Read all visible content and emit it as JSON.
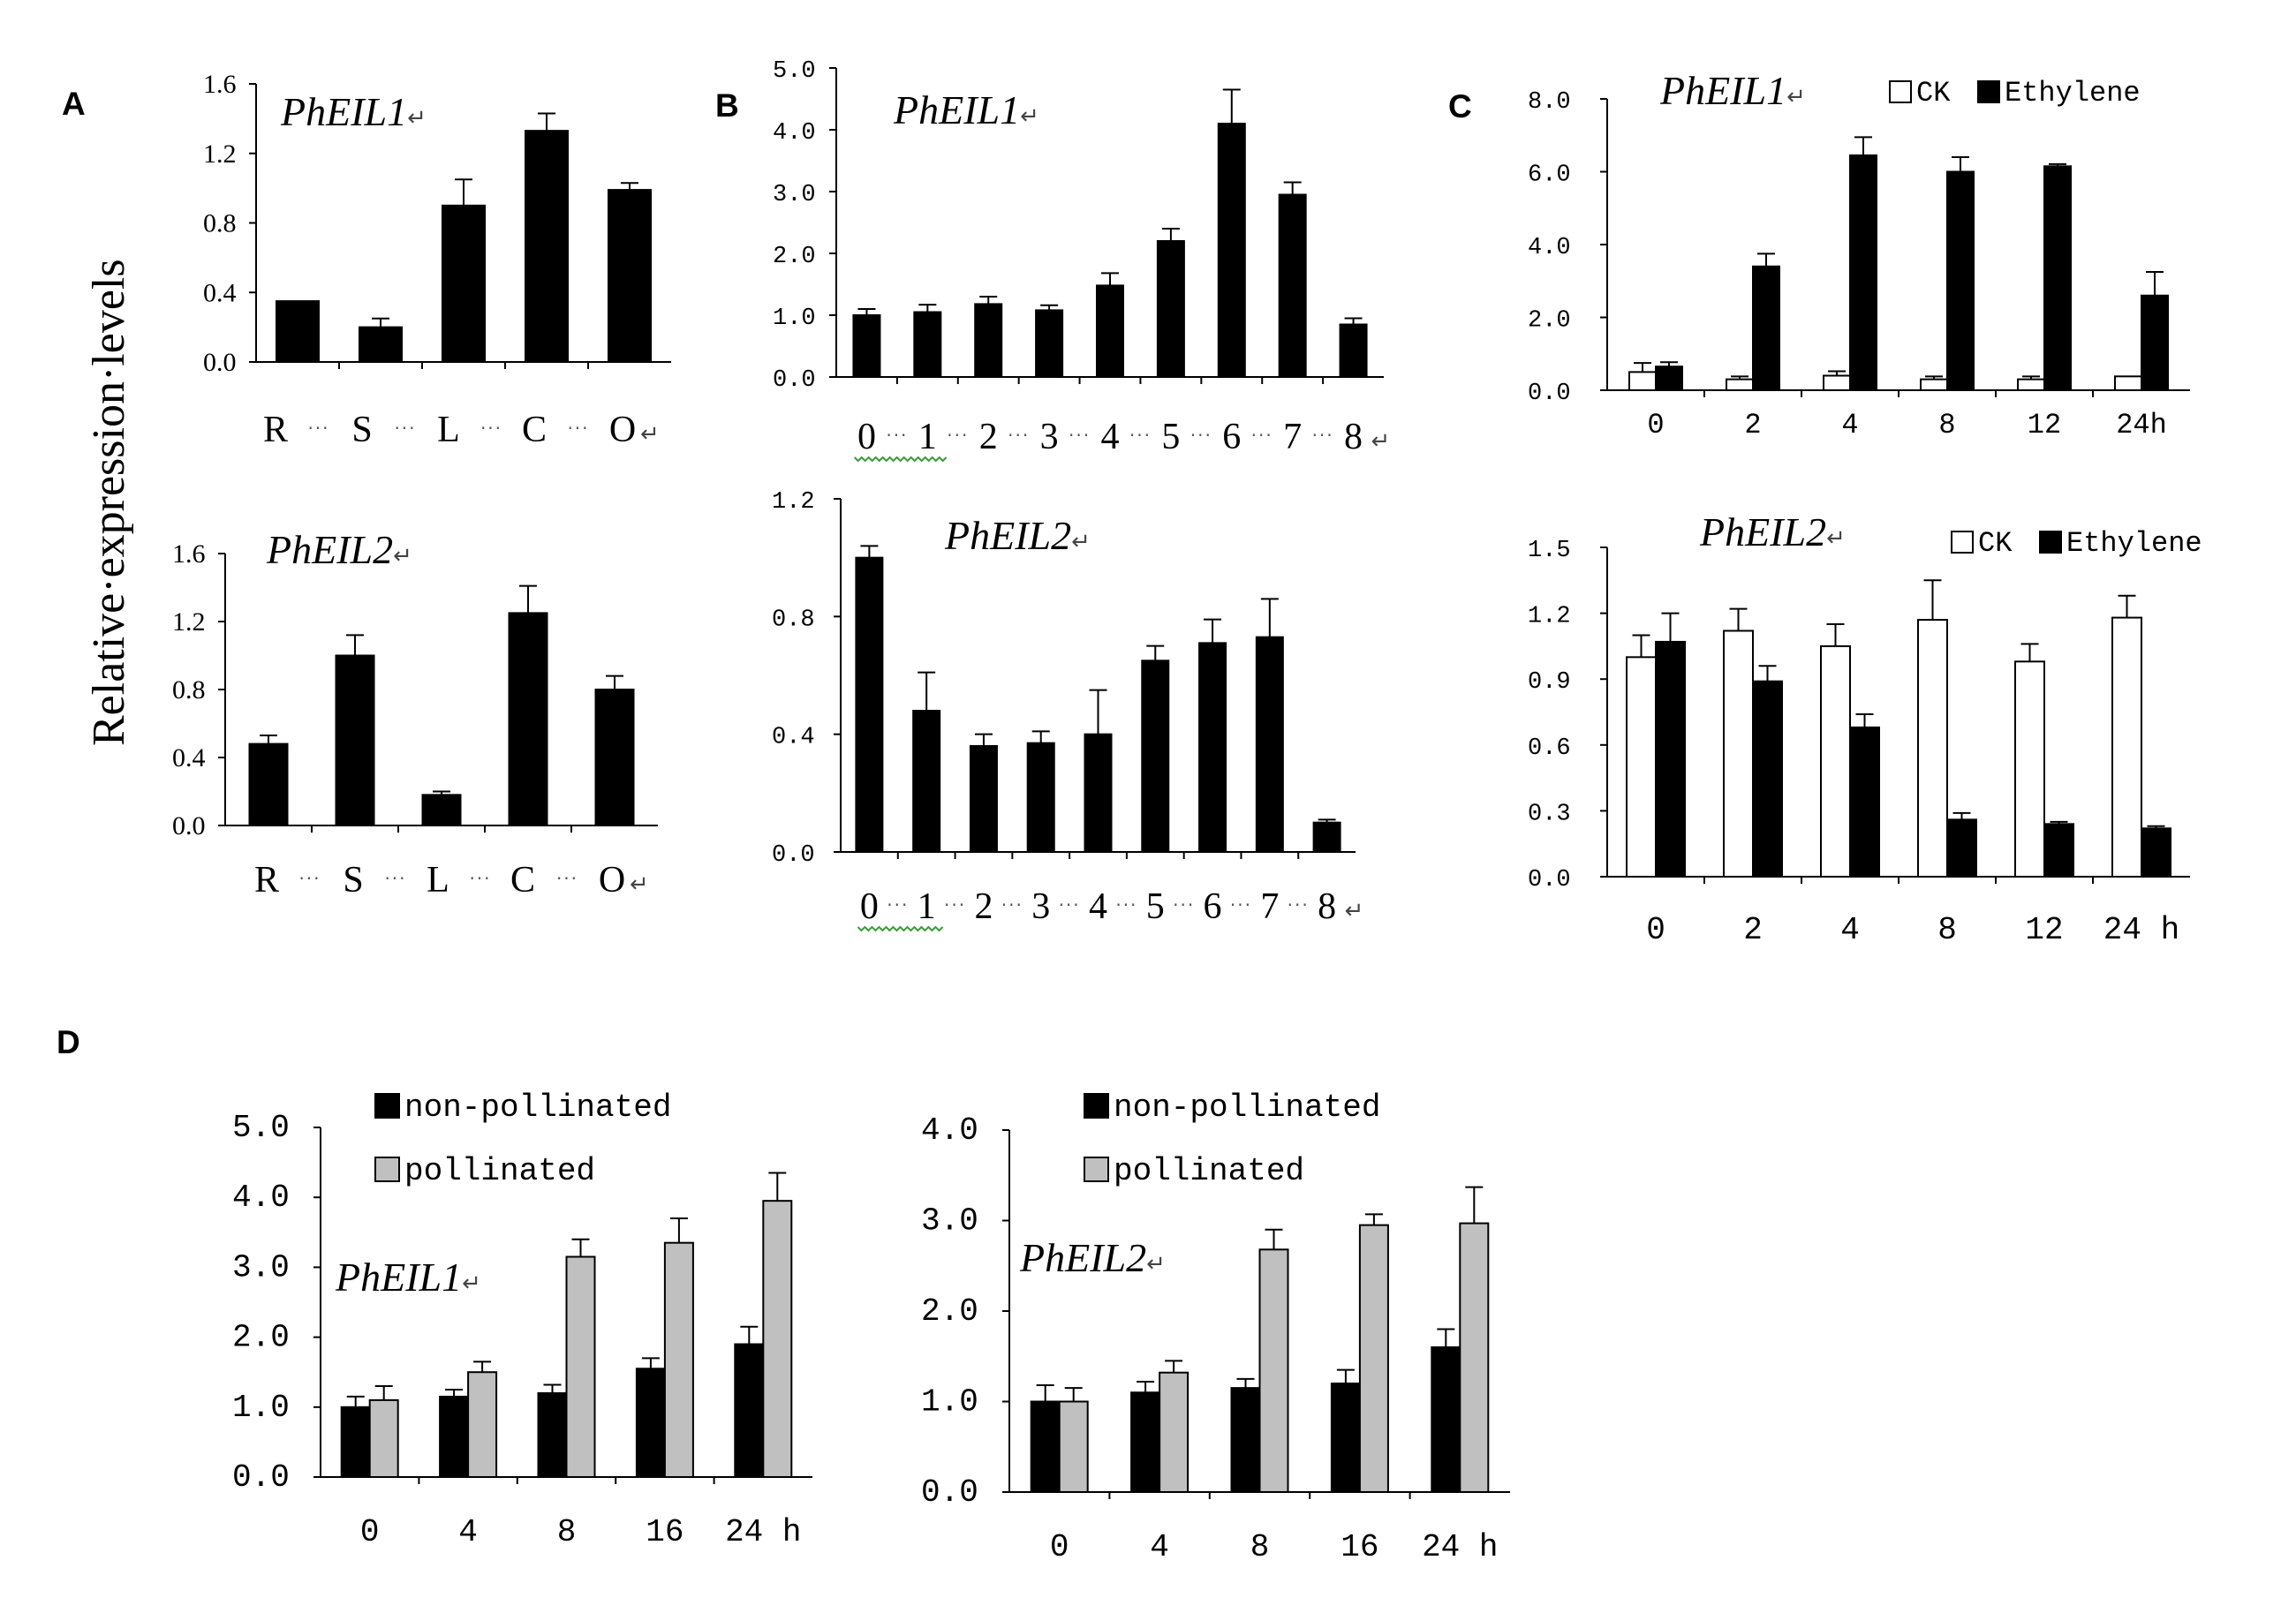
{
  "figure": {
    "ylabel": "Relative·expression·levels",
    "panel_labels": [
      "A",
      "B",
      "C",
      "D"
    ],
    "return_mark": "↵"
  },
  "colors": {
    "black_bar": "#000000",
    "white_bar": "#ffffff",
    "gray_bar": "#c0c0c0",
    "squiggle": "#3a9a3a"
  },
  "chart_data": [
    {
      "id": "A1",
      "panel": "A",
      "type": "bar",
      "title": "PhEIL1",
      "categories": [
        "R",
        "S",
        "L",
        "C",
        "O"
      ],
      "ylim": [
        0,
        1.6
      ],
      "yticks": [
        "0.0",
        "0.4",
        "0.8",
        "1.2",
        "1.6"
      ],
      "series": [
        {
          "name": "expression",
          "values": [
            0.35,
            0.2,
            0.9,
            1.33,
            0.99
          ],
          "errors": [
            0,
            0.05,
            0.15,
            0.1,
            0.04
          ]
        }
      ]
    },
    {
      "id": "A2",
      "panel": "A",
      "type": "bar",
      "title": "PhEIL2",
      "categories": [
        "R",
        "S",
        "L",
        "C",
        "O"
      ],
      "ylim": [
        0,
        1.6
      ],
      "yticks": [
        "0.0",
        "0.4",
        "0.8",
        "1.2",
        "1.6"
      ],
      "series": [
        {
          "name": "expression",
          "values": [
            0.48,
            1.0,
            0.18,
            1.25,
            0.8
          ],
          "errors": [
            0.05,
            0.12,
            0.02,
            0.16,
            0.08
          ]
        }
      ]
    },
    {
      "id": "B1",
      "panel": "B",
      "type": "bar",
      "title": "PhEIL1",
      "categories": [
        "0",
        "1",
        "2",
        "3",
        "4",
        "5",
        "6",
        "7",
        "8"
      ],
      "ylim": [
        0,
        5.0
      ],
      "yticks": [
        "0.0",
        "1.0",
        "2.0",
        "3.0",
        "4.0",
        "5.0"
      ],
      "series": [
        {
          "name": "expression",
          "values": [
            1.0,
            1.05,
            1.18,
            1.08,
            1.48,
            2.2,
            4.1,
            2.95,
            0.85
          ],
          "errors": [
            0.1,
            0.12,
            0.12,
            0.08,
            0.2,
            0.2,
            0.55,
            0.2,
            0.1
          ]
        }
      ]
    },
    {
      "id": "B2",
      "panel": "B",
      "type": "bar",
      "title": "PhEIL2",
      "categories": [
        "0",
        "1",
        "2",
        "3",
        "4",
        "5",
        "6",
        "7",
        "8"
      ],
      "ylim": [
        0,
        1.2
      ],
      "yticks": [
        "0.0",
        "0.4",
        "0.8",
        "1.2"
      ],
      "series": [
        {
          "name": "expression",
          "values": [
            1.0,
            0.48,
            0.36,
            0.37,
            0.4,
            0.65,
            0.71,
            0.73,
            0.1
          ],
          "errors": [
            0.04,
            0.13,
            0.04,
            0.04,
            0.15,
            0.05,
            0.08,
            0.13,
            0.01
          ]
        }
      ]
    },
    {
      "id": "C1",
      "panel": "C",
      "type": "bar",
      "title": "PhEIL1",
      "categories": [
        "0",
        "2",
        "4",
        "8",
        "12",
        "24h"
      ],
      "ylim": [
        0,
        8.0
      ],
      "yticks": [
        "0.0",
        "2.0",
        "4.0",
        "6.0",
        "8.0"
      ],
      "legend": [
        "CK",
        "Ethylene"
      ],
      "series": [
        {
          "name": "CK",
          "values": [
            0.5,
            0.3,
            0.4,
            0.3,
            0.3,
            0.38
          ],
          "errors": [
            0.25,
            0.08,
            0.12,
            0.08,
            0.08,
            0
          ]
        },
        {
          "name": "Ethylene",
          "values": [
            0.65,
            3.4,
            6.45,
            6.0,
            6.15,
            2.6
          ],
          "errors": [
            0.12,
            0.35,
            0.5,
            0.4,
            0.06,
            0.65
          ]
        }
      ]
    },
    {
      "id": "C2",
      "panel": "C",
      "type": "bar",
      "title": "PhEIL2",
      "categories": [
        "0",
        "2",
        "4",
        "8",
        "12",
        "24 h"
      ],
      "ylim": [
        0,
        1.5
      ],
      "yticks": [
        "0.0",
        "0.3",
        "0.6",
        "0.9",
        "1.2",
        "1.5"
      ],
      "legend": [
        "CK",
        "Ethylene"
      ],
      "series": [
        {
          "name": "CK",
          "values": [
            1.0,
            1.12,
            1.05,
            1.17,
            0.98,
            1.18
          ],
          "errors": [
            0.1,
            0.1,
            0.1,
            0.18,
            0.08,
            0.1
          ]
        },
        {
          "name": "Ethylene",
          "values": [
            1.07,
            0.89,
            0.68,
            0.26,
            0.24,
            0.22
          ],
          "errors": [
            0.13,
            0.07,
            0.06,
            0.03,
            0.01,
            0.01
          ]
        }
      ]
    },
    {
      "id": "D1",
      "panel": "D",
      "type": "bar",
      "title": "PhEIL1",
      "categories": [
        "0",
        "4",
        "8",
        "16",
        "24 h"
      ],
      "ylim": [
        0,
        5.0
      ],
      "yticks": [
        "0.0",
        "1.0",
        "2.0",
        "3.0",
        "4.0",
        "5.0"
      ],
      "legend": [
        "non-pollinated",
        "pollinated"
      ],
      "series": [
        {
          "name": "non-pollinated",
          "values": [
            1.0,
            1.15,
            1.2,
            1.55,
            1.9
          ],
          "errors": [
            0.15,
            0.1,
            0.12,
            0.15,
            0.25
          ]
        },
        {
          "name": "pollinated",
          "values": [
            1.1,
            1.5,
            3.15,
            3.35,
            3.95
          ],
          "errors": [
            0.2,
            0.15,
            0.25,
            0.35,
            0.4
          ]
        }
      ]
    },
    {
      "id": "D2",
      "panel": "D",
      "type": "bar",
      "title": "PhEIL2",
      "categories": [
        "0",
        "4",
        "8",
        "16",
        "24 h"
      ],
      "ylim": [
        0,
        4.0
      ],
      "yticks": [
        "0.0",
        "1.0",
        "2.0",
        "3.0",
        "4.0"
      ],
      "legend": [
        "non-pollinated",
        "pollinated"
      ],
      "series": [
        {
          "name": "non-pollinated",
          "values": [
            1.0,
            1.1,
            1.15,
            1.2,
            1.6
          ],
          "errors": [
            0.18,
            0.12,
            0.1,
            0.15,
            0.2
          ]
        },
        {
          "name": "pollinated",
          "values": [
            1.0,
            1.32,
            2.68,
            2.95,
            2.97
          ],
          "errors": [
            0.15,
            0.13,
            0.22,
            0.12,
            0.4
          ]
        }
      ]
    }
  ]
}
